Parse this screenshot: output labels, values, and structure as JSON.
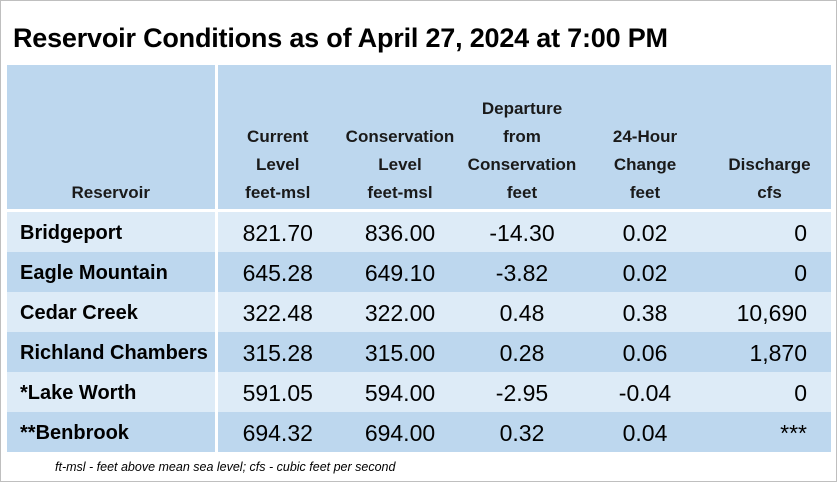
{
  "title": "Reservoir Conditions as of April 27, 2024 at 7:00 PM",
  "columns": [
    {
      "lines": [
        "Reservoir"
      ]
    },
    {
      "lines": [
        "Current",
        "Level",
        "feet-msl"
      ]
    },
    {
      "lines": [
        "Conservation",
        "Level",
        "feet-msl"
      ]
    },
    {
      "lines": [
        "Departure",
        "from",
        "Conservation",
        "feet"
      ]
    },
    {
      "lines": [
        "24-Hour",
        "Change",
        "feet"
      ]
    },
    {
      "lines": [
        "Discharge",
        "cfs"
      ]
    }
  ],
  "rows": [
    {
      "name": "Bridgeport",
      "current": "821.70",
      "conservation": "836.00",
      "departure": "-14.30",
      "change": "0.02",
      "discharge": "0"
    },
    {
      "name": "Eagle Mountain",
      "current": "645.28",
      "conservation": "649.10",
      "departure": "-3.82",
      "change": "0.02",
      "discharge": "0"
    },
    {
      "name": "Cedar Creek",
      "current": "322.48",
      "conservation": "322.00",
      "departure": "0.48",
      "change": "0.38",
      "discharge": "10,690"
    },
    {
      "name": "Richland Chambers",
      "current": "315.28",
      "conservation": "315.00",
      "departure": "0.28",
      "change": "0.06",
      "discharge": "1,870"
    },
    {
      "name": "*Lake Worth",
      "current": "591.05",
      "conservation": "594.00",
      "departure": "-2.95",
      "change": "-0.04",
      "discharge": "0"
    },
    {
      "name": "**Benbrook",
      "current": "694.32",
      "conservation": "694.00",
      "departure": "0.32",
      "change": "0.04",
      "discharge": "***"
    }
  ],
  "footnote": "ft-msl - feet above mean sea level; cfs - cubic feet per second",
  "colors": {
    "header_bg": "#bdd7ee",
    "row_light": "#ddebf7",
    "row_dark": "#bdd7ee"
  }
}
